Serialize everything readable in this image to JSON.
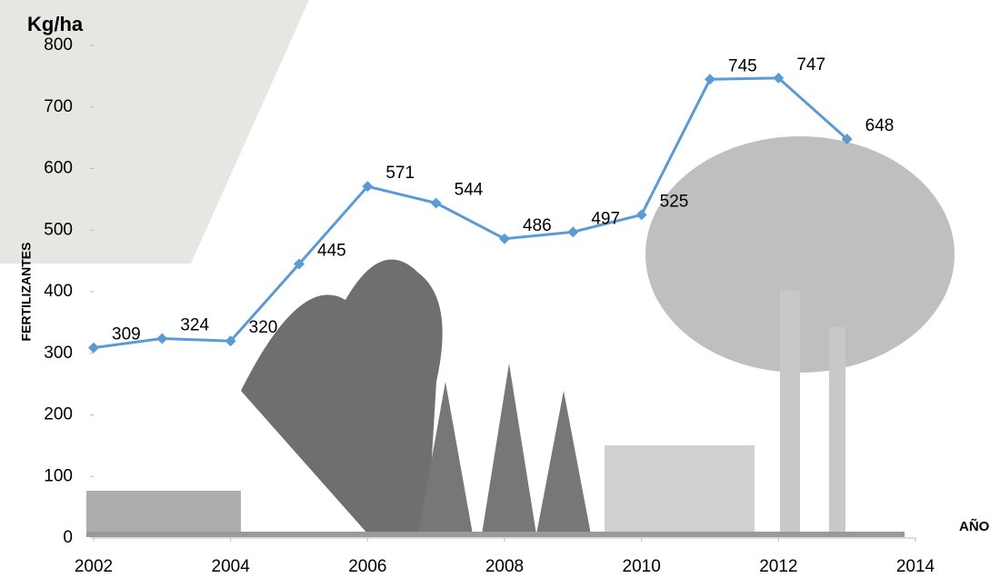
{
  "chart_data": {
    "type": "line",
    "y_unit_label": "Kg/ha",
    "y_label": "FERTILIZANTES",
    "x_label": "AÑO",
    "x": [
      2002,
      2003,
      2004,
      2005,
      2006,
      2007,
      2008,
      2009,
      2010,
      2011,
      2012,
      2013
    ],
    "series": [
      {
        "color": "#5b9bd5",
        "values": [
          309,
          324,
          320,
          445,
          571,
          544,
          486,
          497,
          525,
          745,
          747,
          648
        ]
      }
    ],
    "xlim": [
      2002,
      2014
    ],
    "xticks": [
      2002,
      2004,
      2006,
      2008,
      2010,
      2012,
      2014
    ],
    "ylim": [
      0,
      800
    ],
    "yticks": [
      0,
      100,
      200,
      300,
      400,
      500,
      600,
      700,
      800
    ]
  }
}
